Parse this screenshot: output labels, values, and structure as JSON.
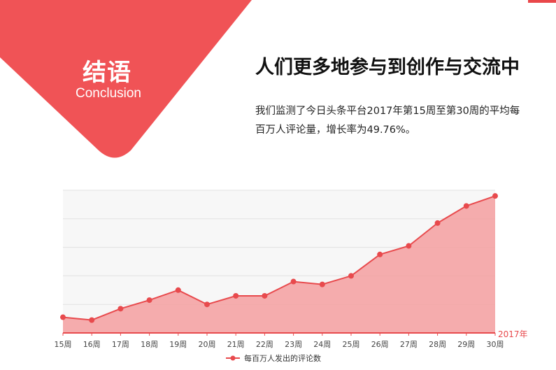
{
  "banner": {
    "title": "结语",
    "subtitle": "Conclusion",
    "color": "#f05356"
  },
  "headline": "人们更多地参与到创作与交流中",
  "description": "我们监测了今日头条平台2017年第15周至第30周的平均每百万人评论量，增长率为49.76%。",
  "chart_data": {
    "type": "area",
    "categories": [
      "15周",
      "16周",
      "17周",
      "18周",
      "19周",
      "20周",
      "21周",
      "22周",
      "23周",
      "24周",
      "25周",
      "26周",
      "27周",
      "28周",
      "29周",
      "30周"
    ],
    "series": [
      {
        "name": "每百万人发出的评论数",
        "values": [
          5.5,
          4.5,
          8.5,
          11.5,
          15,
          10,
          13,
          13,
          18,
          17,
          20,
          27.5,
          30.5,
          38.5,
          44.5,
          48
        ]
      }
    ],
    "x_axis_note": "2017年",
    "ylim": [
      0,
      50
    ],
    "grid": true,
    "legend": "bottom-center",
    "colors": {
      "line": "#e84a4d",
      "fill": "#f4a3a4",
      "axis": "#e84a4d",
      "note": "#e84a4d"
    }
  }
}
